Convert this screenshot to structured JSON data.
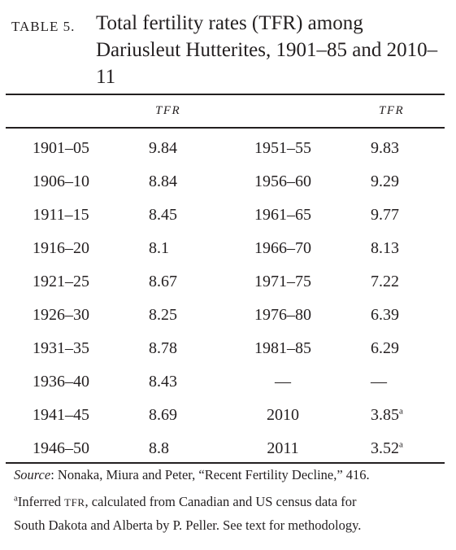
{
  "caption": {
    "label": "Table 5.",
    "title": "Total fertility rates (TFR) among Dariusleut Hutterites, 1901–85 and 2010–11"
  },
  "columns": {
    "left_tfr_header": "TFR",
    "right_tfr_header": "TFR"
  },
  "rows": [
    {
      "period_left": "1901–05",
      "tfr_left": "9.84",
      "period_right": "1951–55",
      "tfr_right": "9.83"
    },
    {
      "period_left": "1906–10",
      "tfr_left": "8.84",
      "period_right": "1956–60",
      "tfr_right": "9.29"
    },
    {
      "period_left": "1911–15",
      "tfr_left": "8.45",
      "period_right": "1961–65",
      "tfr_right": "9.77"
    },
    {
      "period_left": "1916–20",
      "tfr_left": "8.1",
      "period_right": "1966–70",
      "tfr_right": "8.13"
    },
    {
      "period_left": "1921–25",
      "tfr_left": "8.67",
      "period_right": "1971–75",
      "tfr_right": "7.22"
    },
    {
      "period_left": "1926–30",
      "tfr_left": "8.25",
      "period_right": "1976–80",
      "tfr_right": "6.39"
    },
    {
      "period_left": "1931–35",
      "tfr_left": "8.78",
      "period_right": "1981–85",
      "tfr_right": "6.29"
    },
    {
      "period_left": "1936–40",
      "tfr_left": "8.43",
      "period_right": "—",
      "tfr_right": "—"
    },
    {
      "period_left": "1941–45",
      "tfr_left": "8.69",
      "period_right": "2010",
      "tfr_right": "3.85",
      "tfr_right_note": "a"
    },
    {
      "period_left": "1946–50",
      "tfr_left": "8.8",
      "period_right": "2011",
      "tfr_right": "3.52",
      "tfr_right_note": "a"
    }
  ],
  "footnotes": {
    "source_label": "Source",
    "source_text": ": Nonaka, Miura and Peter, “Recent Fertility Decline,” 416.",
    "note_marker": "a",
    "note_line1_pre": "Inferred ",
    "note_line1_abbrev": "TFR",
    "note_line1_post": ", calculated from Canadian and US census data for",
    "note_line2": "South Dakota and Alberta by P. Peller. See text for methodology."
  }
}
